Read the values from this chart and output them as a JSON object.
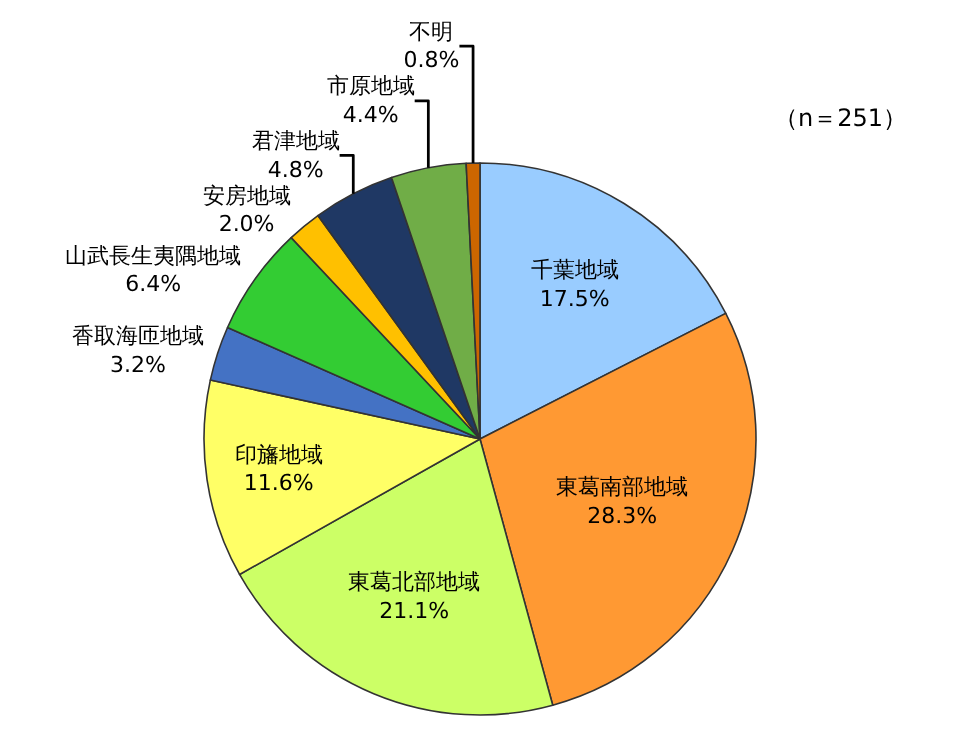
{
  "chart_data": {
    "type": "pie",
    "categories": [
      "千葉地域",
      "東葛南部地域",
      "東葛北部地域",
      "印旛地域",
      "香取海匝地域",
      "山武長生夷隅地域",
      "安房地域",
      "君津地域",
      "市原地域",
      "不明"
    ],
    "values": [
      17.5,
      28.3,
      21.1,
      11.6,
      3.2,
      6.4,
      2.0,
      4.8,
      4.4,
      0.8
    ],
    "value_labels": [
      "17.5%",
      "28.3%",
      "21.1%",
      "11.6%",
      "3.2%",
      "6.4%",
      "2.0%",
      "4.8%",
      "4.4%",
      "0.8%"
    ],
    "colors": [
      "#99ccff",
      "#ff9933",
      "#ccff66",
      "#ffff66",
      "#4472c4",
      "#33cc33",
      "#ffc000",
      "#1f3864",
      "#70ad47",
      "#cc6600"
    ],
    "annotations": [
      "（n＝251）"
    ],
    "legend": false
  }
}
